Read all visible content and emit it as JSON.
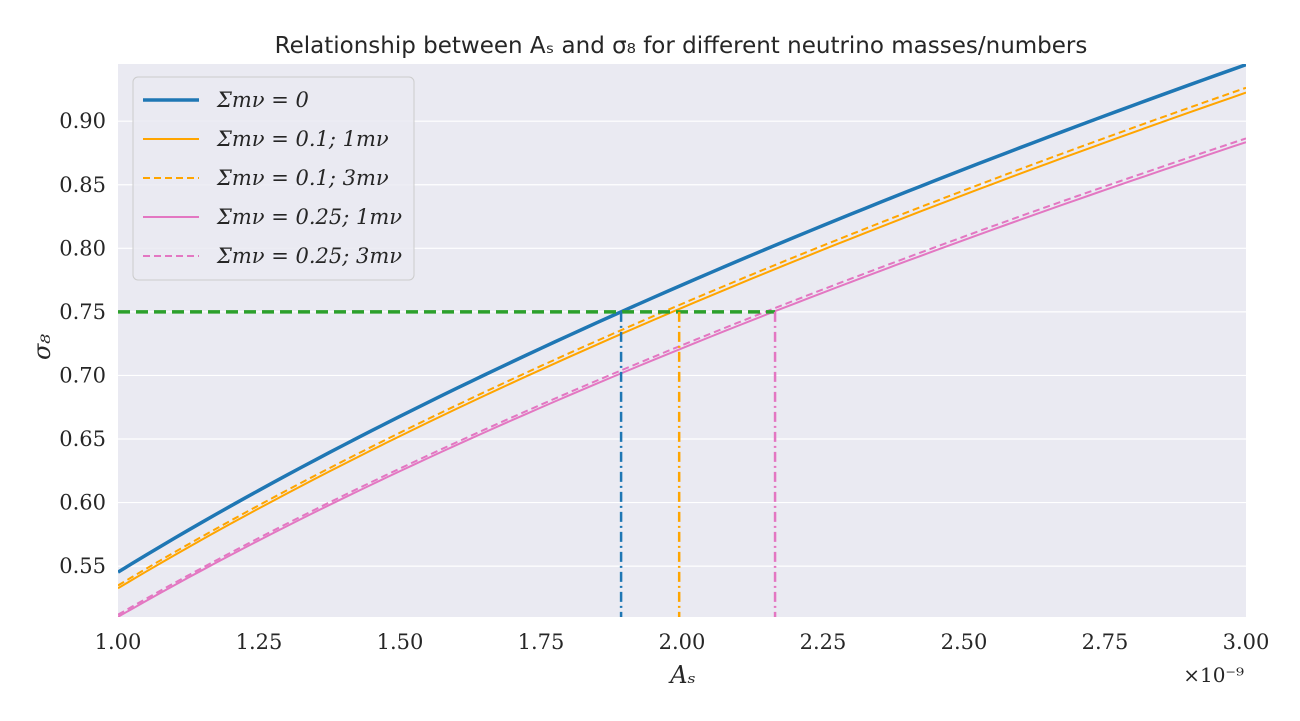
{
  "chart_data": {
    "type": "line",
    "title": "Relationship between Aₛ and σ₈ for different neutrino masses/numbers",
    "xlabel": "Aₛ",
    "ylabel": "σ₈",
    "x_offset_label": "×10⁻⁹",
    "xlim": [
      1.0,
      3.0
    ],
    "ylim": [
      0.51,
      0.945
    ],
    "x_ticks": [
      "1.00",
      "1.25",
      "1.50",
      "1.75",
      "2.00",
      "2.25",
      "2.50",
      "2.75",
      "3.00"
    ],
    "y_ticks": [
      "0.55",
      "0.60",
      "0.65",
      "0.70",
      "0.75",
      "0.80",
      "0.85",
      "0.90"
    ],
    "grid": true,
    "legend_position": "top-left",
    "series": [
      {
        "name": "Σmν = 0",
        "color": "#1f77b4",
        "style": "solid",
        "width": 3.5,
        "amplitude_coef": 0.5453
      },
      {
        "name": "Σmν = 0.1; 1mν",
        "color": "#ffa500",
        "style": "solid",
        "width": 2,
        "amplitude_coef": 0.5326
      },
      {
        "name": "Σmν = 0.1; 3mν",
        "color": "#ffa500",
        "style": "dashed",
        "width": 2,
        "amplitude_coef": 0.5348
      },
      {
        "name": "Σmν = 0.25; 1mν",
        "color": "#e377c2",
        "style": "solid",
        "width": 2,
        "amplitude_coef": 0.5101
      },
      {
        "name": "Σmν = 0.25; 3mν",
        "color": "#e377c2",
        "style": "dashed",
        "width": 2,
        "amplitude_coef": 0.5118
      }
    ],
    "curve_shape": "sigma8 = amplitude_coef * (As/1e-9)^0.5",
    "x_samples": [
      1.0,
      1.25,
      1.5,
      1.75,
      2.0,
      2.25,
      2.5,
      2.75,
      3.0
    ],
    "reference_line": {
      "y": 0.75,
      "x_end": 2.165,
      "color": "#2ca02c",
      "style": "dashed"
    },
    "intercepts": [
      {
        "x": 1.892,
        "color": "#1f77b4"
      },
      {
        "x": 1.995,
        "color": "#ffa500"
      },
      {
        "x": 2.165,
        "color": "#e377c2"
      }
    ]
  }
}
